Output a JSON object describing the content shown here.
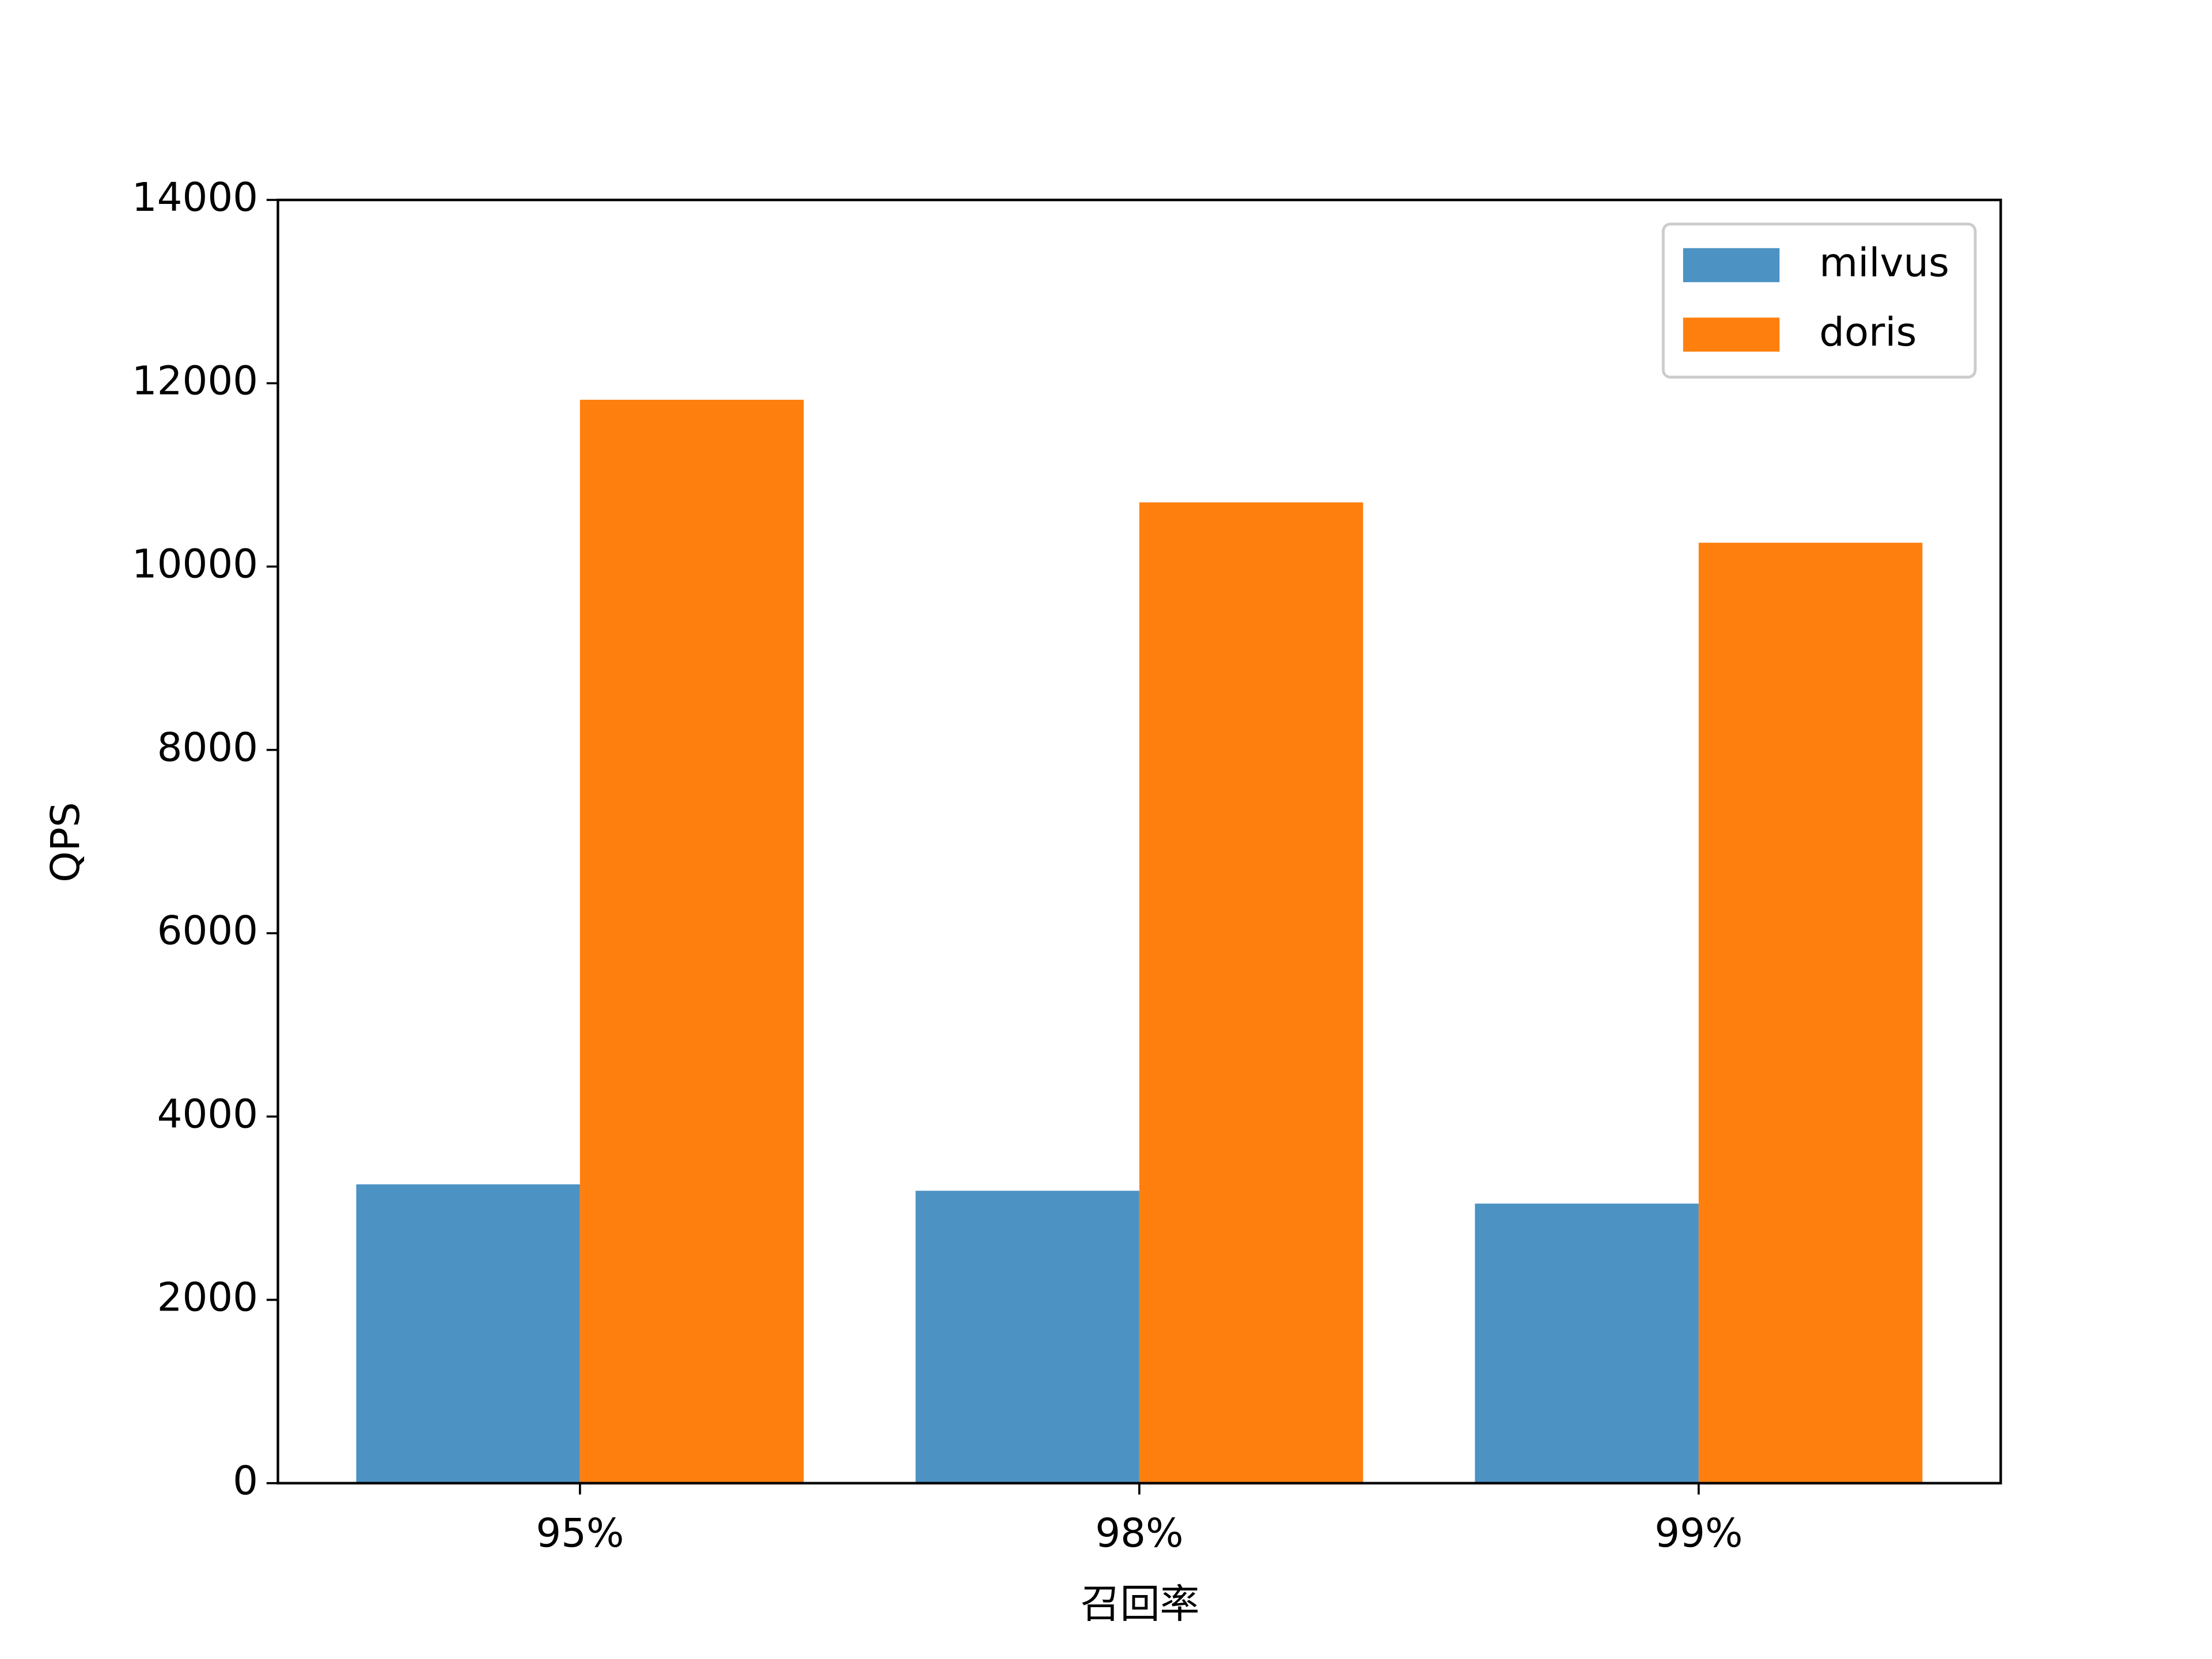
{
  "chart_data": {
    "type": "bar",
    "x_label": "召回率",
    "y_label": "QPS",
    "categories": [
      "95%",
      "98%",
      "99%"
    ],
    "series": [
      {
        "name": "milvus",
        "color": "#4c92c3",
        "values": [
          3260,
          3190,
          3050
        ]
      },
      {
        "name": "doris",
        "color": "#ff7f0e",
        "values": [
          11820,
          10700,
          10260
        ]
      }
    ],
    "ylim": [
      0,
      14000
    ],
    "yticks": [
      0,
      2000,
      4000,
      6000,
      8000,
      10000,
      12000,
      14000
    ],
    "legend": "upper right",
    "grid": false
  }
}
